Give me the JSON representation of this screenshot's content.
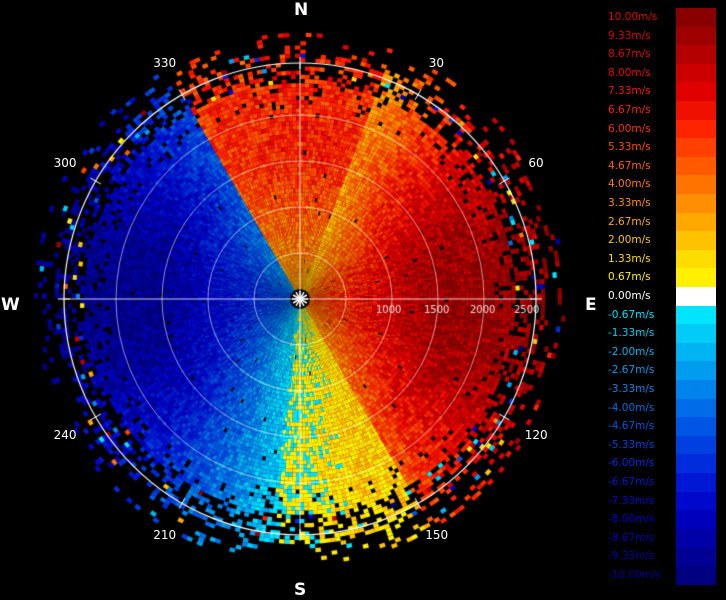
{
  "compass": {
    "north": "N",
    "south": "S",
    "east": "E",
    "west": "W"
  },
  "bearings": [
    {
      "deg": 30,
      "label": "30"
    },
    {
      "deg": 60,
      "label": "60"
    },
    {
      "deg": 120,
      "label": "120"
    },
    {
      "deg": 150,
      "label": "150"
    },
    {
      "deg": 210,
      "label": "210"
    },
    {
      "deg": 240,
      "label": "240"
    },
    {
      "deg": 300,
      "label": "300"
    },
    {
      "deg": 330,
      "label": "330"
    }
  ],
  "range_labels": [
    "1000",
    "1500",
    "2000",
    "2500"
  ],
  "legend": [
    {
      "label": "10.00m/s",
      "color": "#8a0000",
      "text_color": "#e00000"
    },
    {
      "label": "9.33m/s",
      "color": "#9e0000",
      "text_color": "#e00000"
    },
    {
      "label": "8.67m/s",
      "color": "#b40000",
      "text_color": "#e60000"
    },
    {
      "label": "8.00m/s",
      "color": "#cc0000",
      "text_color": "#ee0000"
    },
    {
      "label": "7.33m/s",
      "color": "#e00000",
      "text_color": "#ff1000"
    },
    {
      "label": "6.67m/s",
      "color": "#f01000",
      "text_color": "#ff2000"
    },
    {
      "label": "6.00m/s",
      "color": "#ff2400",
      "text_color": "#ff3000"
    },
    {
      "label": "5.33m/s",
      "color": "#ff4000",
      "text_color": "#ff4a00"
    },
    {
      "label": "4.67m/s",
      "color": "#ff5a00",
      "text_color": "#ff6000"
    },
    {
      "label": "4.00m/s",
      "color": "#ff7400",
      "text_color": "#ff7a00"
    },
    {
      "label": "3.33m/s",
      "color": "#ff8e00",
      "text_color": "#ff9400"
    },
    {
      "label": "2.67m/s",
      "color": "#ffa800",
      "text_color": "#ffae00"
    },
    {
      "label": "2.00m/s",
      "color": "#ffc200",
      "text_color": "#ffc600"
    },
    {
      "label": "1.33m/s",
      "color": "#ffdc00",
      "text_color": "#ffdc00"
    },
    {
      "label": "0.67m/s",
      "color": "#fff000",
      "text_color": "#fff000"
    },
    {
      "label": "0.00m/s",
      "color": "#ffffff",
      "text_color": "#ffffff"
    },
    {
      "label": "-0.67m/s",
      "color": "#00e4ff",
      "text_color": "#00e4ff"
    },
    {
      "label": "-1.33m/s",
      "color": "#00ccf8",
      "text_color": "#00ccf8"
    },
    {
      "label": "-2.00m/s",
      "color": "#00b4f4",
      "text_color": "#00b4f4"
    },
    {
      "label": "-2.67m/s",
      "color": "#009cf0",
      "text_color": "#009cf0"
    },
    {
      "label": "-3.33m/s",
      "color": "#0084ec",
      "text_color": "#0084ec"
    },
    {
      "label": "-4.00m/s",
      "color": "#006ce8",
      "text_color": "#006ce8"
    },
    {
      "label": "-4.67m/s",
      "color": "#0056e4",
      "text_color": "#0056e4"
    },
    {
      "label": "-5.33m/s",
      "color": "#0040e0",
      "text_color": "#0040e0"
    },
    {
      "label": "-6.00m/s",
      "color": "#002cdc",
      "text_color": "#002cdc"
    },
    {
      "label": "-6.67m/s",
      "color": "#0018d4",
      "text_color": "#0018d4"
    },
    {
      "label": "-7.33m/s",
      "color": "#0008cc",
      "text_color": "#0008cc"
    },
    {
      "label": "-8.00m/s",
      "color": "#0000bc",
      "text_color": "#0000c8"
    },
    {
      "label": "-8.67m/s",
      "color": "#0000a8",
      "text_color": "#0000b8"
    },
    {
      "label": "-9.33m/s",
      "color": "#000094",
      "text_color": "#0000a8"
    },
    {
      "label": "-10.00m/s",
      "color": "#000080",
      "text_color": "#000098"
    }
  ]
}
